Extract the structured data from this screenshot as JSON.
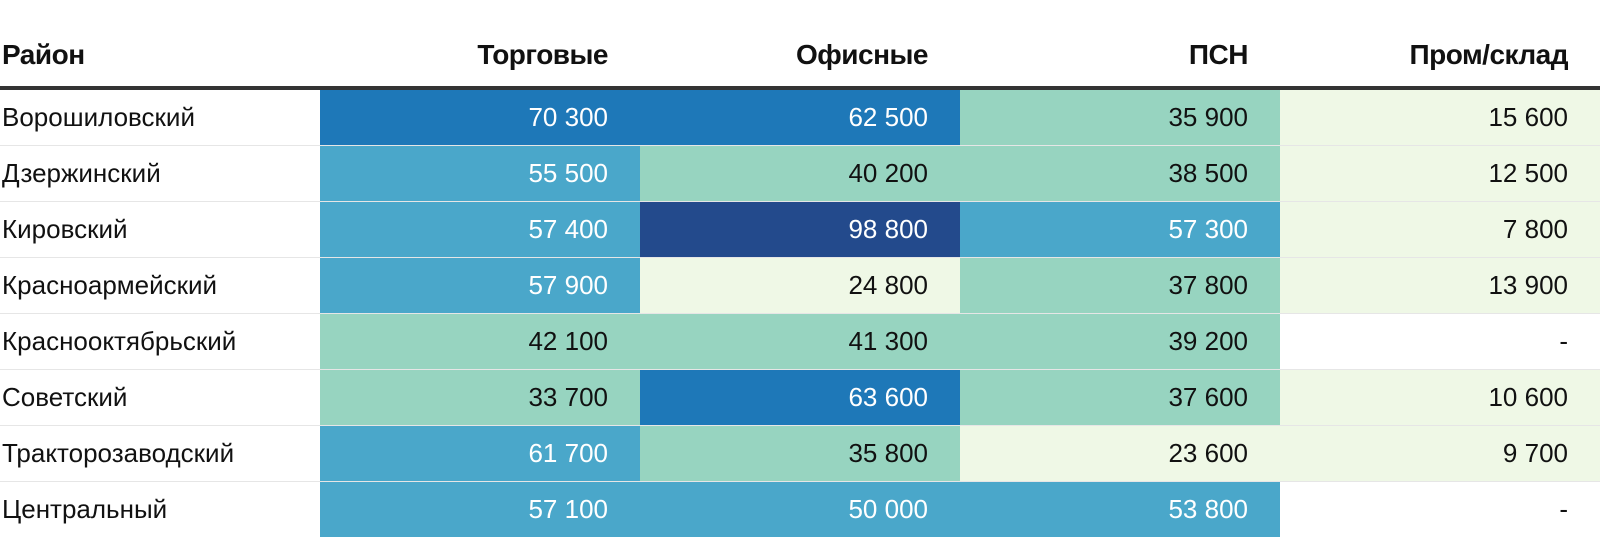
{
  "chart_data": {
    "type": "table",
    "columns": [
      "Район",
      "Торговые",
      "Офисные",
      "ПСН",
      "Пром/склад"
    ],
    "rows": [
      {
        "district": "Ворошиловский",
        "values": [
          "70 300",
          "62 500",
          "35 900",
          "15 600"
        ],
        "levels": [
          4,
          4,
          2,
          1
        ]
      },
      {
        "district": "Дзержинский",
        "values": [
          "55 500",
          "40 200",
          "38 500",
          "12 500"
        ],
        "levels": [
          3,
          2,
          2,
          1
        ]
      },
      {
        "district": "Кировский",
        "values": [
          "57 400",
          "98 800",
          "57 300",
          "7 800"
        ],
        "levels": [
          3,
          5,
          3,
          1
        ]
      },
      {
        "district": "Красноармейский",
        "values": [
          "57 900",
          "24 800",
          "37 800",
          "13 900"
        ],
        "levels": [
          3,
          1,
          2,
          1
        ]
      },
      {
        "district": "Краснооктябрьский",
        "values": [
          "42 100",
          "41 300",
          "39 200",
          "-"
        ],
        "levels": [
          2,
          2,
          2,
          0
        ]
      },
      {
        "district": "Советский",
        "values": [
          "33 700",
          "63 600",
          "37 600",
          "10 600"
        ],
        "levels": [
          2,
          4,
          2,
          1
        ]
      },
      {
        "district": "Тракторозаводский",
        "values": [
          "61 700",
          "35 800",
          "23 600",
          "9 700"
        ],
        "levels": [
          3,
          2,
          1,
          1
        ]
      },
      {
        "district": "Центральный",
        "values": [
          "57 100",
          "50 000",
          "53 800",
          "-"
        ],
        "levels": [
          3,
          3,
          3,
          0
        ]
      }
    ],
    "color_scale": [
      "#ffffff",
      "#eff8e6",
      "#97d4c0",
      "#4aa7ca",
      "#1e78b8",
      "#234a8c"
    ]
  }
}
